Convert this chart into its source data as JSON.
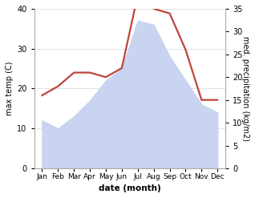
{
  "months": [
    "Jan",
    "Feb",
    "Mar",
    "Apr",
    "May",
    "Jun",
    "Jul",
    "Aug",
    "Sep",
    "Oct",
    "Nov",
    "Dec"
  ],
  "temp": [
    12,
    10,
    13,
    17,
    22,
    25,
    37,
    36,
    28,
    22,
    16,
    14
  ],
  "precip": [
    16,
    18,
    21,
    21,
    20,
    22,
    38,
    35,
    34,
    26,
    15,
    15
  ],
  "precip_color": "#c0433a",
  "temp_fill_color": "#c8d4f0",
  "left_label": "max temp (C)",
  "right_label": "med. precipitation (kg/m2)",
  "xlabel": "date (month)",
  "ylim_left": [
    0,
    40
  ],
  "ylim_right": [
    0,
    35
  ],
  "yticks_left": [
    0,
    10,
    20,
    30,
    40
  ],
  "yticks_right": [
    0,
    5,
    10,
    15,
    20,
    25,
    30,
    35
  ],
  "bg_color": "#ffffff",
  "grid_color": "#dddddd"
}
